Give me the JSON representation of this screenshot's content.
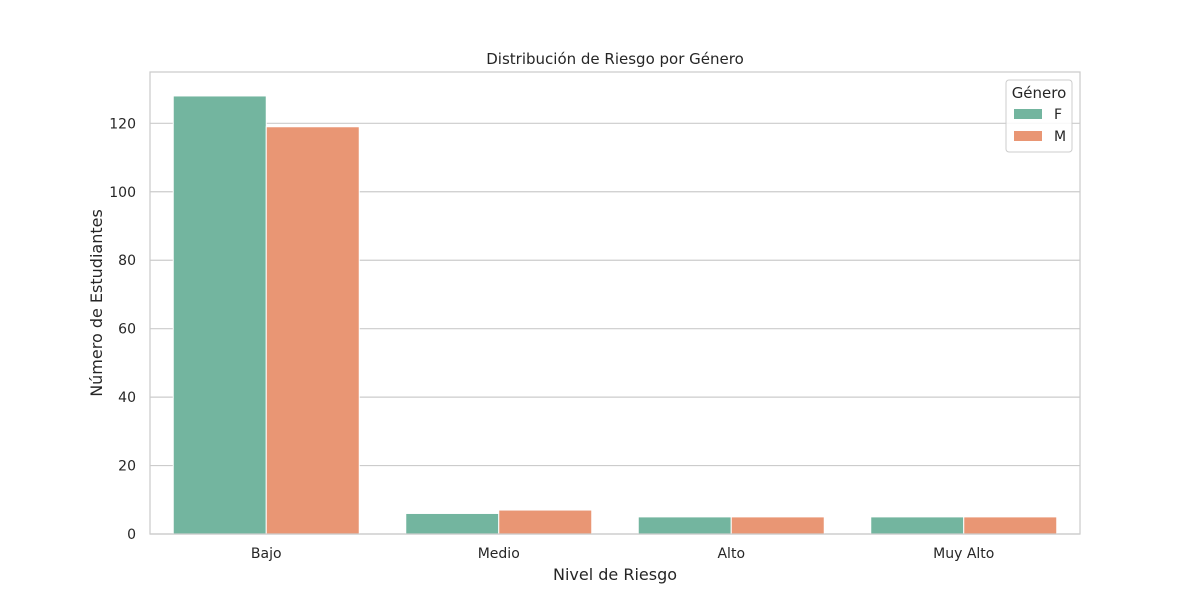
{
  "chart_data": {
    "type": "bar",
    "title": "Distribución de Riesgo por Género",
    "xlabel": "Nivel de Riesgo",
    "ylabel": "Número de Estudiantes",
    "categories": [
      "Bajo",
      "Medio",
      "Alto",
      "Muy Alto"
    ],
    "series": [
      {
        "name": "F",
        "values": [
          128,
          6,
          5,
          5
        ],
        "color": "#73b59f"
      },
      {
        "name": "M",
        "values": [
          119,
          7,
          5,
          5
        ],
        "color": "#e99674"
      }
    ],
    "ylim": [
      0,
      135
    ],
    "yticks": [
      0,
      20,
      40,
      60,
      80,
      100,
      120
    ],
    "grid": true,
    "legend": {
      "title": "Género",
      "placement": "top-right"
    }
  }
}
